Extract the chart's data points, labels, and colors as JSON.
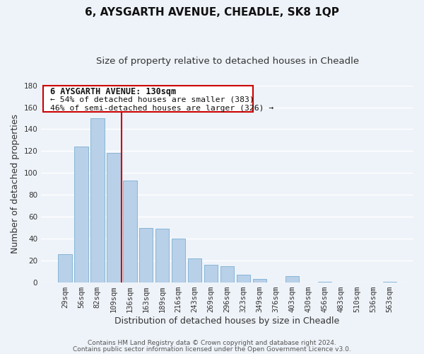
{
  "title": "6, AYSGARTH AVENUE, CHEADLE, SK8 1QP",
  "subtitle": "Size of property relative to detached houses in Cheadle",
  "xlabel": "Distribution of detached houses by size in Cheadle",
  "ylabel": "Number of detached properties",
  "bar_labels": [
    "29sqm",
    "56sqm",
    "82sqm",
    "109sqm",
    "136sqm",
    "163sqm",
    "189sqm",
    "216sqm",
    "243sqm",
    "269sqm",
    "296sqm",
    "323sqm",
    "349sqm",
    "376sqm",
    "403sqm",
    "430sqm",
    "456sqm",
    "483sqm",
    "510sqm",
    "536sqm",
    "563sqm"
  ],
  "bar_values": [
    26,
    124,
    150,
    118,
    93,
    50,
    49,
    40,
    22,
    16,
    15,
    7,
    3,
    0,
    6,
    0,
    1,
    0,
    0,
    0,
    1
  ],
  "bar_color": "#b8d0e8",
  "bar_edge_color": "#7bafd4",
  "vline_x_idx": 4,
  "vline_color": "#cc0000",
  "ylim": [
    0,
    180
  ],
  "yticks": [
    0,
    20,
    40,
    60,
    80,
    100,
    120,
    140,
    160,
    180
  ],
  "annotation_title": "6 AYSGARTH AVENUE: 130sqm",
  "annotation_line1": "← 54% of detached houses are smaller (383)",
  "annotation_line2": "46% of semi-detached houses are larger (326) →",
  "annotation_box_facecolor": "#ffffff",
  "annotation_box_edgecolor": "#cc0000",
  "footer1": "Contains HM Land Registry data © Crown copyright and database right 2024.",
  "footer2": "Contains public sector information licensed under the Open Government Licence v3.0.",
  "bg_color": "#eef3f9",
  "grid_color": "#ffffff",
  "title_fontsize": 11,
  "subtitle_fontsize": 9.5,
  "axis_label_fontsize": 9,
  "tick_fontsize": 7.5,
  "footer_fontsize": 6.5,
  "annotation_fontsize": 8.5
}
